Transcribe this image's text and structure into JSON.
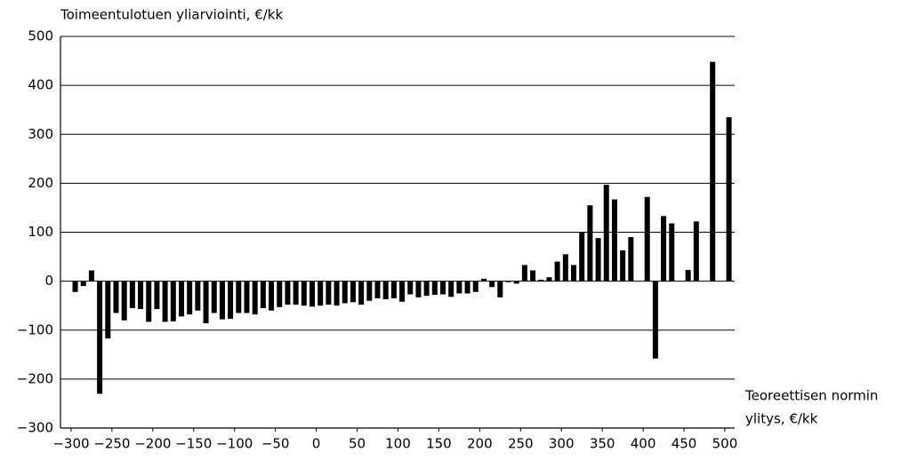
{
  "chart_data": {
    "type": "bar",
    "title": "Toimeentulotuen yliarviointi, €/kk",
    "x_label": [
      "Teoreettisen normin",
      "ylitys, €/kk"
    ],
    "color": "#000000",
    "grid": true,
    "x": [
      -295,
      -285,
      -275,
      -265,
      -255,
      -245,
      -235,
      -225,
      -215,
      -205,
      -195,
      -185,
      -175,
      -165,
      -155,
      -145,
      -135,
      -125,
      -115,
      -105,
      -95,
      -85,
      -75,
      -65,
      -55,
      -45,
      -35,
      -25,
      -15,
      -5,
      5,
      15,
      25,
      35,
      45,
      55,
      65,
      75,
      85,
      95,
      105,
      115,
      125,
      135,
      145,
      155,
      165,
      175,
      185,
      195,
      205,
      215,
      225,
      235,
      245,
      255,
      265,
      275,
      285,
      295,
      305,
      315,
      325,
      335,
      345,
      355,
      365,
      375,
      385,
      395,
      405,
      415,
      425,
      435,
      445,
      455,
      465,
      475,
      485,
      495,
      505
    ],
    "values": [
      -22,
      -10,
      22,
      -230,
      -117,
      -65,
      -80,
      -55,
      -57,
      -83,
      -57,
      -83,
      -82,
      -72,
      -68,
      -60,
      -86,
      -65,
      -78,
      -77,
      -65,
      -65,
      -68,
      -55,
      -60,
      -53,
      -48,
      -48,
      -50,
      -52,
      -50,
      -48,
      -50,
      -45,
      -43,
      -48,
      -40,
      -35,
      -37,
      -35,
      -42,
      -27,
      -33,
      -30,
      -28,
      -27,
      -32,
      -25,
      -25,
      -22,
      5,
      -12,
      -33,
      -2,
      -5,
      33,
      22,
      3,
      8,
      40,
      55,
      33,
      100,
      155,
      88,
      197,
      167,
      63,
      90,
      0,
      172,
      -158,
      133,
      118,
      0,
      23,
      122,
      0,
      448,
      0,
      335
    ],
    "xlim": [
      -313,
      512
    ],
    "xticks": [
      {
        "value": -300,
        "label": "−300"
      },
      {
        "value": -250,
        "label": "−250"
      },
      {
        "value": -200,
        "label": "−200"
      },
      {
        "value": -150,
        "label": "−150"
      },
      {
        "value": -100,
        "label": "−100"
      },
      {
        "value": -50,
        "label": "−50"
      },
      0,
      50,
      100,
      150,
      200,
      250,
      300,
      350,
      400,
      450,
      500
    ],
    "ylim": [
      -300,
      500
    ],
    "yticks": [
      {
        "value": -300,
        "label": "−300"
      },
      {
        "value": -200,
        "label": "−200"
      },
      {
        "value": -100,
        "label": "−100"
      },
      0,
      100,
      200,
      300,
      400,
      500
    ]
  }
}
